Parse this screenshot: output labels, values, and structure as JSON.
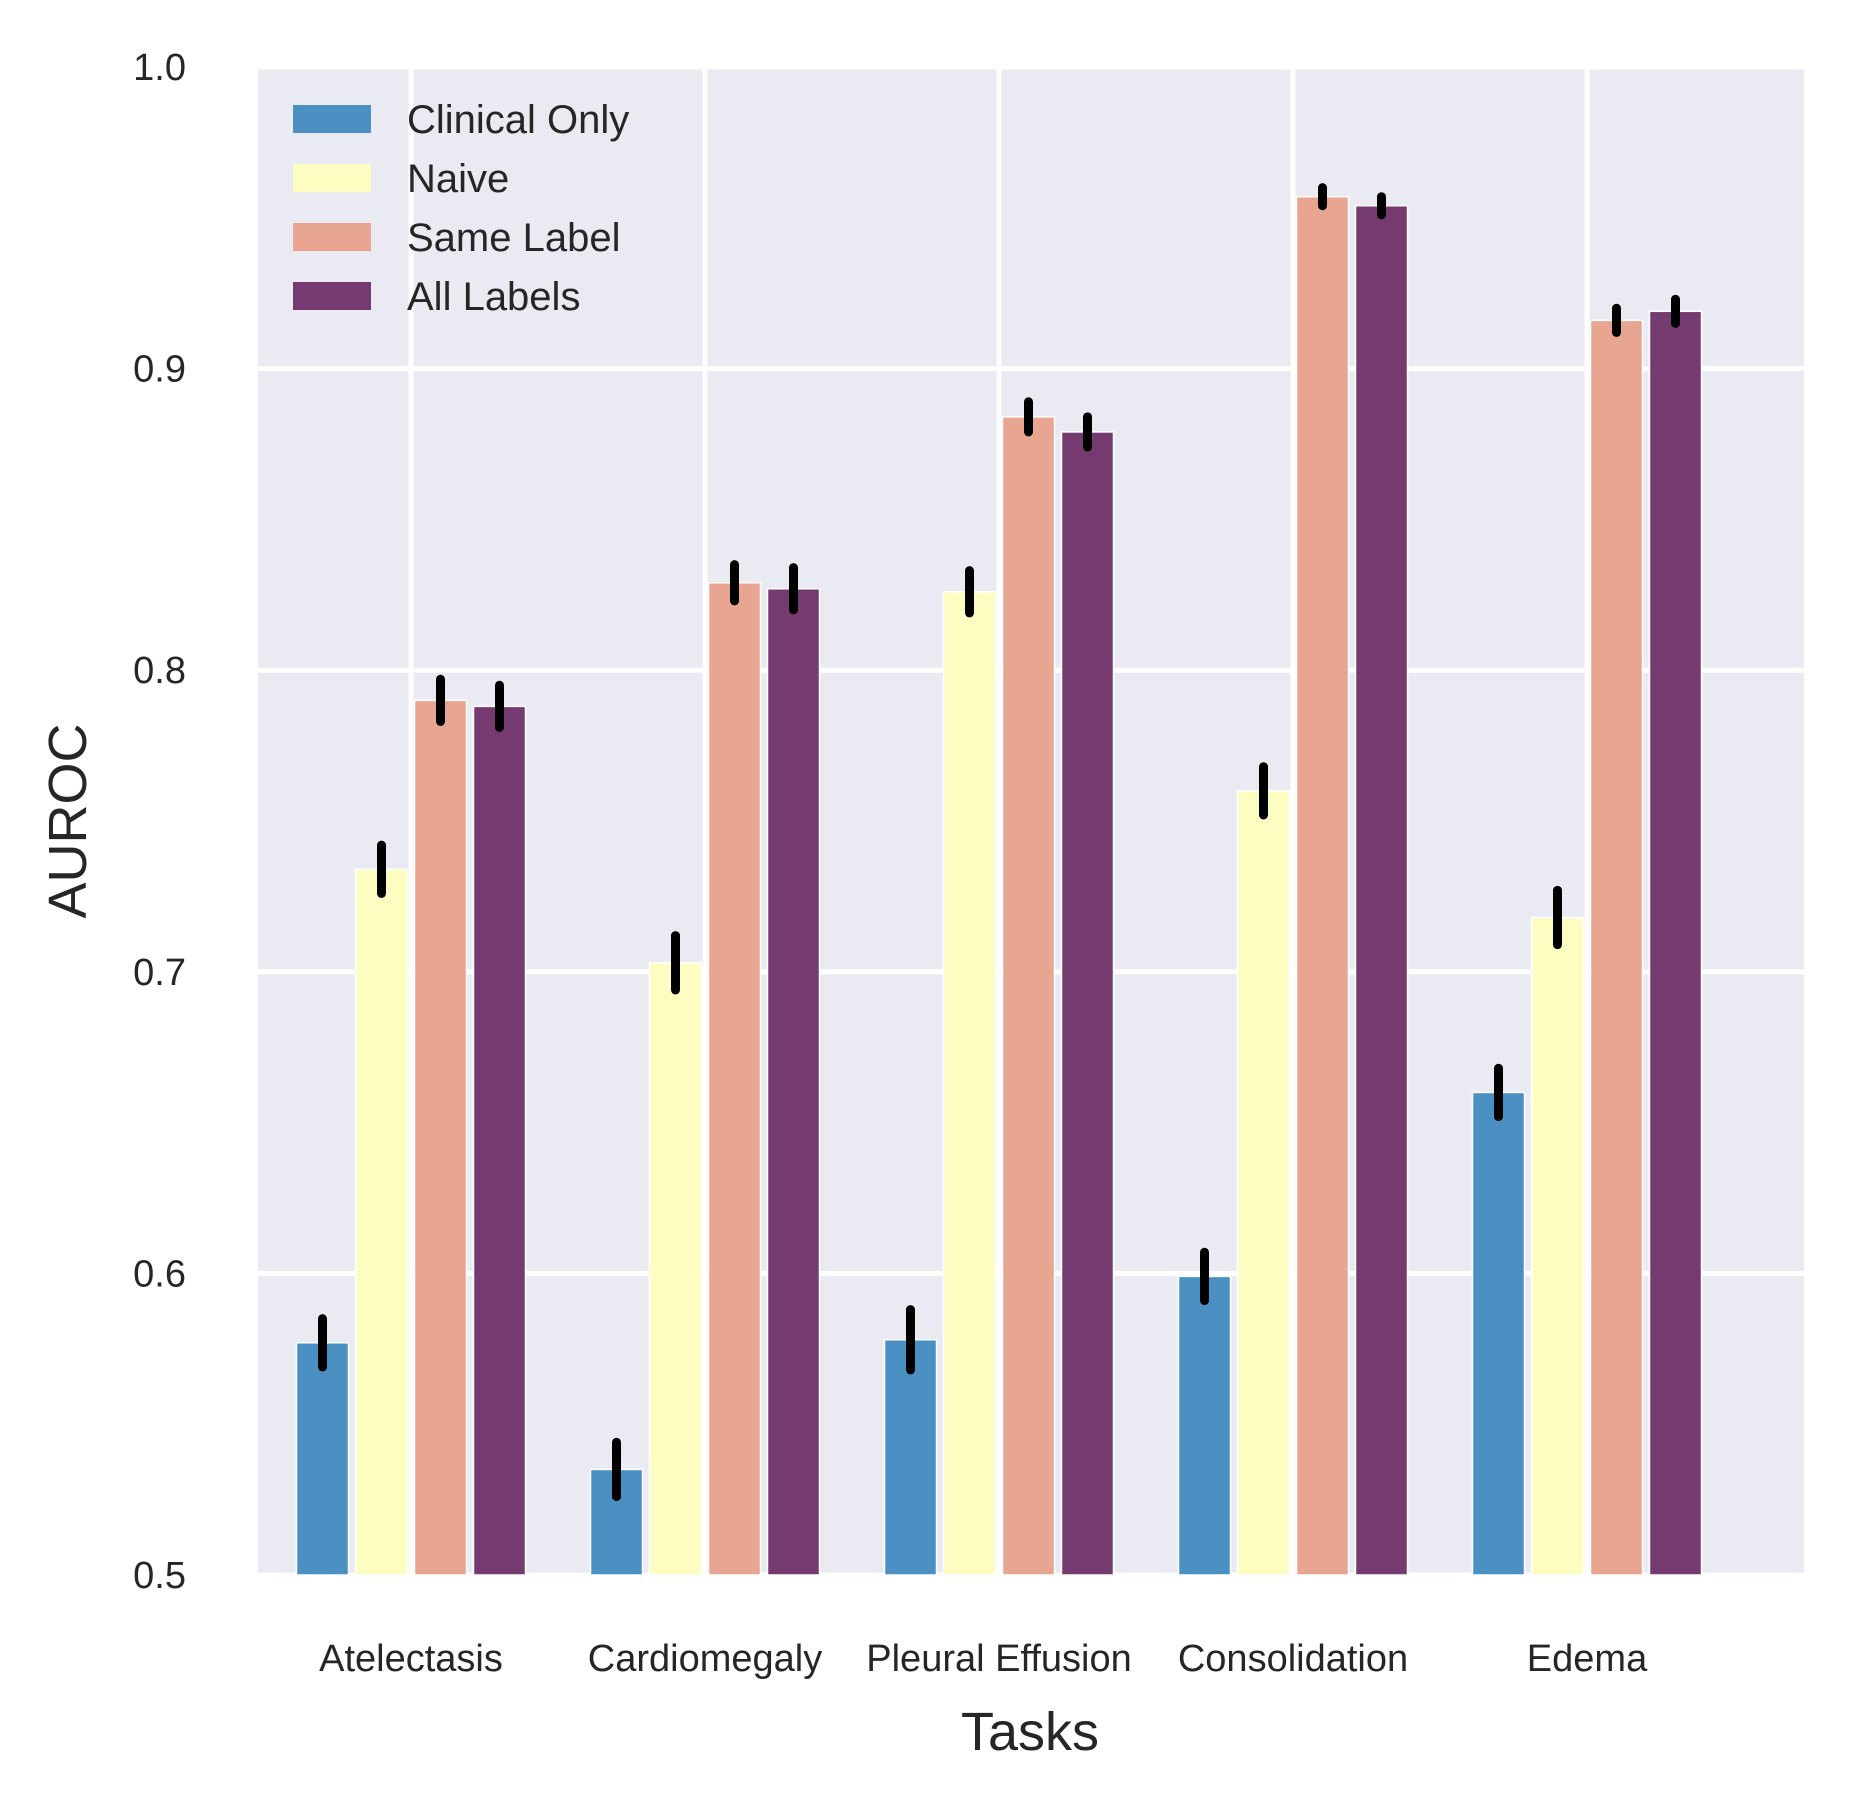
{
  "chart_data": {
    "type": "bar",
    "title": "",
    "xlabel": "Tasks",
    "ylabel": "AUROC",
    "ylim": [
      0.5,
      1.0
    ],
    "yticks": [
      "0.5",
      "0.6",
      "0.7",
      "0.8",
      "0.9",
      "1.0"
    ],
    "categories": [
      "Atelectasis",
      "Cardiomegaly",
      "Pleural Effusion",
      "Consolidation",
      "Edema"
    ],
    "series": [
      {
        "name": "Clinical Only",
        "color": "#4a90c2",
        "values": [
          0.577,
          0.535,
          0.578,
          0.599,
          0.66
        ],
        "errors": [
          0.008,
          0.009,
          0.01,
          0.008,
          0.008
        ]
      },
      {
        "name": "Naive",
        "color": "#fdfdc2",
        "values": [
          0.734,
          0.703,
          0.826,
          0.76,
          0.718
        ],
        "errors": [
          0.008,
          0.009,
          0.007,
          0.008,
          0.009
        ]
      },
      {
        "name": "Same Label",
        "color": "#e8a592",
        "values": [
          0.79,
          0.829,
          0.884,
          0.957,
          0.916
        ],
        "errors": [
          0.007,
          0.006,
          0.005,
          0.003,
          0.004
        ]
      },
      {
        "name": "All Labels",
        "color": "#753b71",
        "values": [
          0.788,
          0.827,
          0.879,
          0.954,
          0.919
        ],
        "errors": [
          0.007,
          0.007,
          0.005,
          0.003,
          0.004
        ]
      }
    ],
    "error_bar_color": "#000000",
    "legend_position": "top-left",
    "grid": true
  }
}
